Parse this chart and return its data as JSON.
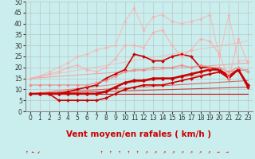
{
  "background_color": "#caeeed",
  "grid_color": "#b0b0b0",
  "xlim": [
    -0.5,
    23.5
  ],
  "ylim": [
    0,
    50
  ],
  "yticks": [
    0,
    5,
    10,
    15,
    20,
    25,
    30,
    35,
    40,
    45,
    50
  ],
  "xticks": [
    0,
    1,
    2,
    3,
    4,
    5,
    6,
    7,
    8,
    9,
    10,
    11,
    12,
    13,
    14,
    15,
    16,
    17,
    18,
    19,
    20,
    21,
    22,
    23
  ],
  "xlabel": "Vent moyen/en rafales ( km/h )",
  "xlabel_color": "#cc0000",
  "xlabel_fontsize": 7.5,
  "straight_lines": [
    {
      "x": [
        0,
        23
      ],
      "y": [
        8,
        8
      ],
      "color": "#cc0000",
      "lw": 0.8,
      "alpha": 1.0
    },
    {
      "x": [
        0,
        23
      ],
      "y": [
        8,
        11
      ],
      "color": "#cc3333",
      "lw": 0.8,
      "alpha": 0.9
    },
    {
      "x": [
        0,
        23
      ],
      "y": [
        8,
        14
      ],
      "color": "#dd4444",
      "lw": 0.8,
      "alpha": 0.8
    },
    {
      "x": [
        0,
        23
      ],
      "y": [
        8,
        19
      ],
      "color": "#ee6666",
      "lw": 0.8,
      "alpha": 0.7
    },
    {
      "x": [
        0,
        23
      ],
      "y": [
        15,
        22
      ],
      "color": "#ee8888",
      "lw": 0.8,
      "alpha": 0.65
    },
    {
      "x": [
        0,
        23
      ],
      "y": [
        15,
        32
      ],
      "color": "#ffaaaa",
      "lw": 0.8,
      "alpha": 0.6
    }
  ],
  "curved_lines": [
    {
      "x": [
        0,
        1,
        2,
        3,
        4,
        5,
        6,
        7,
        8,
        9,
        10,
        11,
        12,
        13,
        14,
        15,
        16,
        17,
        18,
        19,
        20,
        21,
        22,
        23
      ],
      "y": [
        8,
        8,
        8,
        5,
        5,
        5,
        5,
        5,
        6,
        8,
        10,
        11,
        12,
        12,
        12,
        13,
        14,
        15,
        16,
        17,
        18,
        15,
        19,
        12
      ],
      "color": "#cc0000",
      "lw": 1.2,
      "marker": "D",
      "ms": 2,
      "alpha": 1.0
    },
    {
      "x": [
        0,
        1,
        2,
        3,
        4,
        5,
        6,
        7,
        8,
        9,
        10,
        11,
        12,
        13,
        14,
        15,
        16,
        17,
        18,
        19,
        20,
        21,
        22,
        23
      ],
      "y": [
        8,
        8,
        8,
        8,
        8,
        8,
        8,
        8,
        9,
        11,
        13,
        14,
        14,
        15,
        15,
        15,
        16,
        17,
        18,
        19,
        19,
        16,
        19,
        12
      ],
      "color": "#cc0000",
      "lw": 1.8,
      "marker": "D",
      "ms": 2.5,
      "alpha": 1.0
    },
    {
      "x": [
        0,
        1,
        2,
        3,
        4,
        5,
        6,
        7,
        8,
        9,
        10,
        11,
        12,
        13,
        14,
        15,
        16,
        17,
        18,
        19,
        20,
        21,
        22,
        23
      ],
      "y": [
        8,
        8,
        8,
        8,
        9,
        10,
        11,
        12,
        15,
        17,
        19,
        26,
        25,
        23,
        23,
        25,
        26,
        25,
        20,
        20,
        19,
        15,
        19,
        11
      ],
      "color": "#cc0000",
      "lw": 1.2,
      "marker": "D",
      "ms": 2,
      "alpha": 1.0
    },
    {
      "x": [
        0,
        1,
        2,
        3,
        4,
        5,
        6,
        7,
        8,
        9,
        10,
        11,
        12,
        13,
        14,
        15,
        16,
        17,
        18,
        19,
        20,
        21,
        22,
        23
      ],
      "y": [
        12,
        12,
        12,
        12,
        12,
        12,
        12,
        13,
        14,
        16,
        18,
        19,
        19,
        20,
        20,
        20,
        21,
        20,
        21,
        20,
        20,
        18,
        20,
        18
      ],
      "color": "#ee8888",
      "lw": 1.0,
      "marker": "D",
      "ms": 2,
      "alpha": 0.8
    },
    {
      "x": [
        0,
        1,
        2,
        3,
        4,
        5,
        6,
        7,
        8,
        9,
        10,
        11,
        12,
        13,
        14,
        15,
        16,
        17,
        18,
        19,
        20,
        21,
        22,
        23
      ],
      "y": [
        15,
        16,
        17,
        18,
        20,
        21,
        19,
        18,
        20,
        24,
        30,
        30,
        29,
        36,
        37,
        30,
        25,
        28,
        33,
        32,
        26,
        15,
        33,
        22
      ],
      "color": "#ffaaaa",
      "lw": 0.9,
      "marker": "D",
      "ms": 2,
      "alpha": 0.75
    },
    {
      "x": [
        0,
        1,
        2,
        3,
        4,
        5,
        6,
        7,
        8,
        9,
        10,
        11,
        12,
        13,
        14,
        15,
        16,
        17,
        18,
        19,
        20,
        21,
        22,
        23
      ],
      "y": [
        15,
        16,
        18,
        20,
        22,
        25,
        26,
        28,
        29,
        30,
        41,
        47,
        37,
        43,
        44,
        41,
        40,
        41,
        42,
        44,
        25,
        44,
        23,
        23
      ],
      "color": "#ffaaaa",
      "lw": 0.9,
      "marker": "D",
      "ms": 2,
      "alpha": 0.6
    }
  ],
  "arrows": "↑ ← ↙                    ↑  ↑  ↑  ↑  ↑  ↗  ↗  ↗  ↗  ↗  ↗  ↗  ↗  →  →"
}
